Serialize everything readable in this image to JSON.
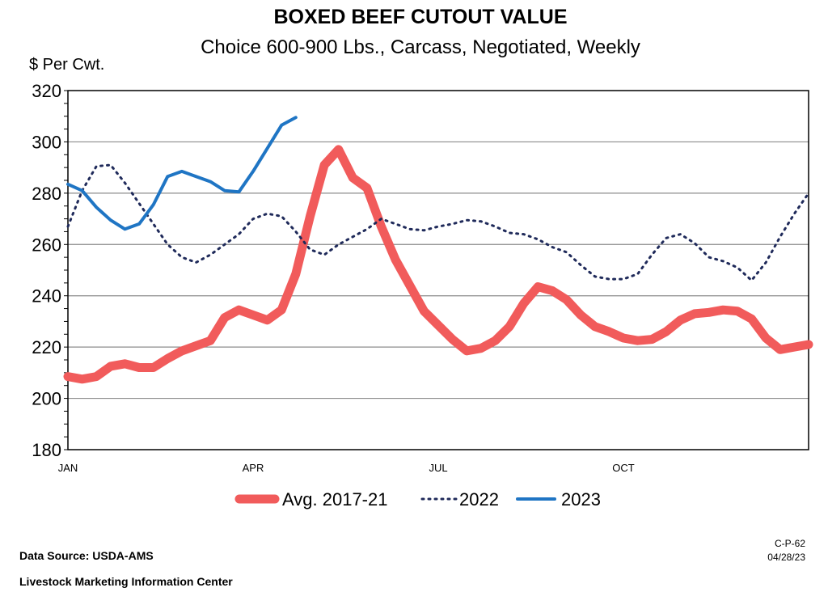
{
  "chart_data": {
    "type": "line",
    "title": "BOXED BEEF CUTOUT VALUE",
    "subtitle": "Choice 600-900 Lbs., Carcass, Negotiated, Weekly",
    "ylabel": "$ Per Cwt.",
    "ylim": [
      180,
      320
    ],
    "yticks": [
      180,
      200,
      220,
      240,
      260,
      280,
      300,
      320
    ],
    "xlim": [
      1,
      53
    ],
    "xticks": [
      {
        "label": "JAN",
        "week": 1
      },
      {
        "label": "APR",
        "week": 14
      },
      {
        "label": "JUL",
        "week": 27
      },
      {
        "label": "OCT",
        "week": 40
      }
    ],
    "grid": true,
    "legend_position": "bottom",
    "series": [
      {
        "name": "Avg. 2017-21",
        "color": "#f15b5b",
        "style": "thick",
        "x": [
          1,
          2,
          3,
          4,
          5,
          6,
          7,
          8,
          9,
          10,
          11,
          12,
          13,
          14,
          15,
          16,
          17,
          18,
          19,
          20,
          21,
          22,
          23,
          24,
          25,
          26,
          27,
          28,
          29,
          30,
          31,
          32,
          33,
          34,
          35,
          36,
          37,
          38,
          39,
          40,
          41,
          42,
          43,
          44,
          45,
          46,
          47,
          48,
          49,
          50,
          51,
          52,
          53
        ],
        "values": [
          208.5,
          207.5,
          208.5,
          212.5,
          213.5,
          212,
          212,
          215.5,
          218.5,
          220.5,
          222.5,
          231.5,
          234.5,
          232.5,
          230.5,
          234.5,
          248.5,
          271,
          291,
          297,
          286,
          282,
          267,
          254,
          244,
          234,
          228.5,
          223,
          218.5,
          219.5,
          222.5,
          228,
          237,
          243.5,
          242,
          238.5,
          232.5,
          228,
          226,
          223.5,
          222.5,
          223,
          226,
          230.5,
          233,
          233.5,
          234.5,
          234,
          231,
          223.5,
          219,
          220,
          221
        ]
      },
      {
        "name": "2022",
        "color": "#1f2a5a",
        "style": "dotted",
        "x": [
          1,
          2,
          3,
          4,
          5,
          6,
          7,
          8,
          9,
          10,
          11,
          12,
          13,
          14,
          15,
          16,
          17,
          18,
          19,
          20,
          21,
          22,
          23,
          24,
          25,
          26,
          27,
          28,
          29,
          30,
          31,
          32,
          33,
          34,
          35,
          36,
          37,
          38,
          39,
          40,
          41,
          42,
          43,
          44,
          45,
          46,
          47,
          48,
          49,
          50,
          51,
          52,
          53
        ],
        "values": [
          267,
          281,
          290.5,
          291,
          284,
          276,
          268,
          260,
          255,
          253,
          256,
          260,
          264,
          270,
          272,
          271,
          265,
          258,
          256,
          260,
          263,
          266,
          270,
          268,
          266,
          265.5,
          267,
          268,
          269.5,
          269,
          267,
          264.5,
          264,
          262,
          259,
          257,
          252,
          247.5,
          246.5,
          246.5,
          248.5,
          256,
          262.5,
          264,
          260.5,
          255,
          253.5,
          251,
          246,
          253,
          263,
          272,
          280
        ]
      },
      {
        "name": "2023",
        "color": "#1f75c4",
        "style": "solid",
        "x": [
          1,
          2,
          3,
          4,
          5,
          6,
          7,
          8,
          9,
          10,
          11,
          12,
          13,
          14,
          15,
          16,
          17
        ],
        "values": [
          283.5,
          281,
          274.5,
          269.5,
          266,
          268,
          275.5,
          286.5,
          288.5,
          286.5,
          284.5,
          281,
          280.5,
          288.5,
          297.5,
          306.5,
          309.5
        ]
      }
    ]
  },
  "footer": {
    "source": "Data Source:  USDA-AMS",
    "org": "Livestock Marketing Information Center",
    "code": "C-P-62",
    "date": "04/28/23"
  }
}
